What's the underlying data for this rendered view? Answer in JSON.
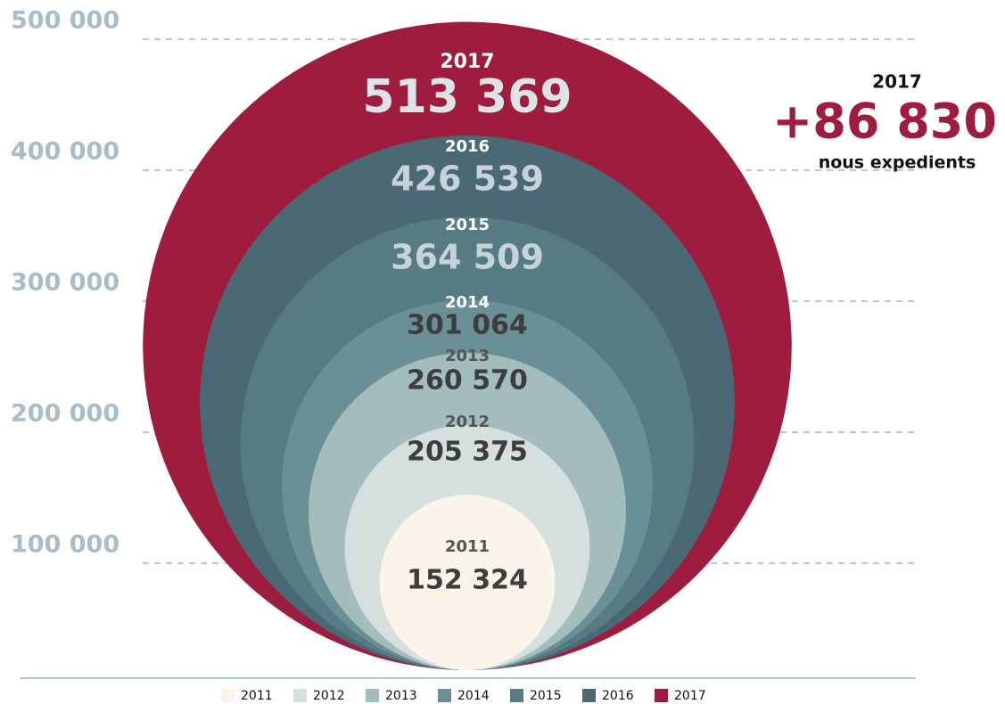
{
  "chart_data": {
    "type": "nested-circles",
    "categories": [
      "2011",
      "2012",
      "2013",
      "2014",
      "2015",
      "2016",
      "2017"
    ],
    "values": [
      152324,
      205375,
      260570,
      301064,
      364509,
      426539,
      513369
    ],
    "value_labels": [
      "152 324",
      "205 375",
      "260 570",
      "301 064",
      "364 509",
      "426 539",
      "513 369"
    ],
    "colors": [
      "#fbf4ea",
      "#d4dfde",
      "#a3bdbd",
      "#6a8f96",
      "#577b85",
      "#4b6875",
      "#9e1c3e"
    ],
    "ylim": [
      0,
      530000
    ],
    "yticks": [
      {
        "value": 100000,
        "label": "100 000"
      },
      {
        "value": 200000,
        "label": "200 000"
      },
      {
        "value": 300000,
        "label": "300 000"
      },
      {
        "value": 400000,
        "label": "400 000"
      },
      {
        "value": 500000,
        "label": "500 000"
      }
    ],
    "grid": true,
    "legend": "bottom",
    "annotation": {
      "year": "2017",
      "value": "+86 830",
      "text": "nous expedients"
    }
  }
}
